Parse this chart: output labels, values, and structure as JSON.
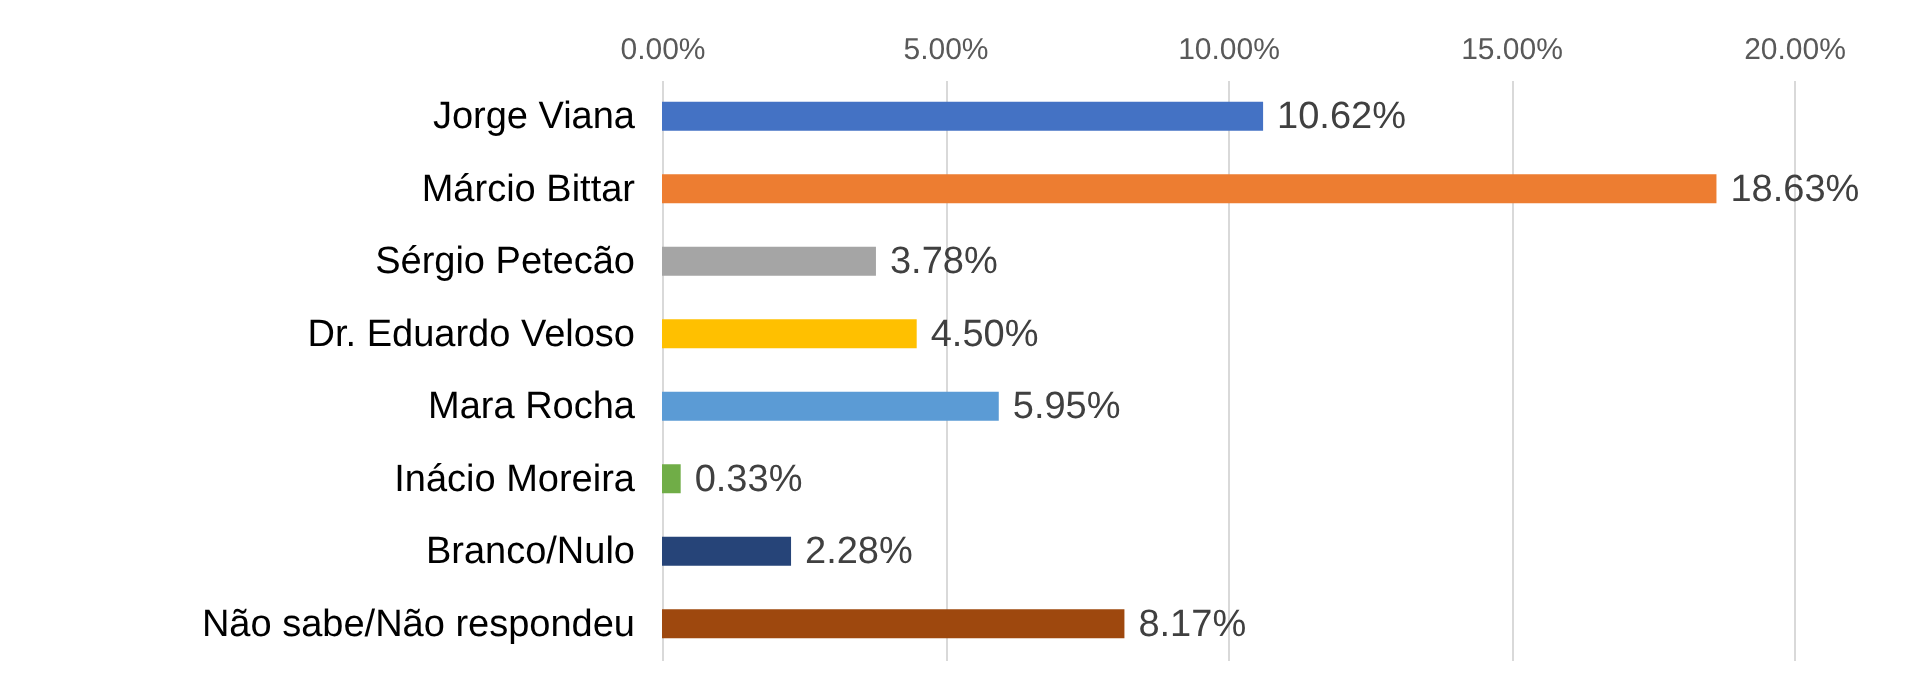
{
  "chart_data": {
    "type": "bar",
    "orientation": "horizontal",
    "categories": [
      "Jorge Viana",
      "Márcio Bittar",
      "Sérgio Petecão",
      "Dr. Eduardo Veloso",
      "Mara Rocha",
      "Inácio Moreira",
      "Branco/Nulo",
      "Não sabe/Não respondeu"
    ],
    "values": [
      10.62,
      18.63,
      3.78,
      4.5,
      5.95,
      0.33,
      2.28,
      8.17
    ],
    "value_labels": [
      "10.62%",
      "18.63%",
      "3.78%",
      "4.50%",
      "5.95%",
      "0.33%",
      "2.28%",
      "8.17%"
    ],
    "colors": [
      "#4472c4",
      "#ed7d31",
      "#a5a5a5",
      "#ffc000",
      "#5b9bd5",
      "#70ad47",
      "#264478",
      "#9e480e"
    ],
    "xlim": [
      0,
      20
    ],
    "xticks": [
      {
        "value": 0,
        "label": "0.00%"
      },
      {
        "value": 5,
        "label": "5.00%"
      },
      {
        "value": 10,
        "label": "10.00%"
      },
      {
        "value": 15,
        "label": "15.00%"
      },
      {
        "value": 20,
        "label": "20.00%"
      }
    ],
    "grid": "x"
  }
}
